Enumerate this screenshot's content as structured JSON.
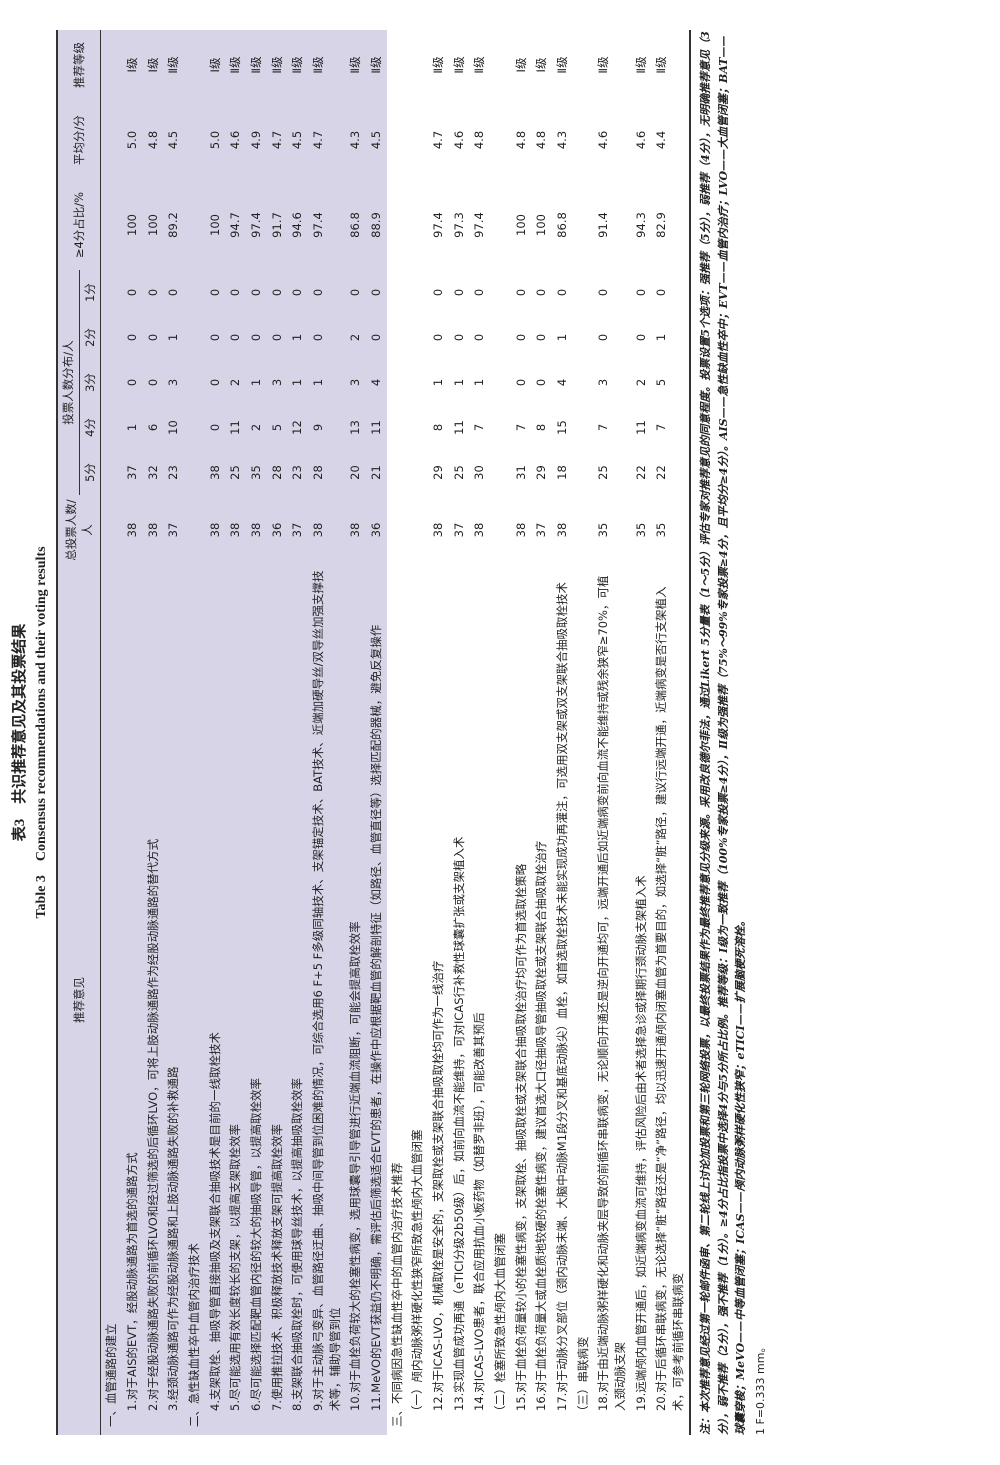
{
  "title": "表3　共识推荐意见及其投票结果",
  "title_en": "Table 3　Consensus recommendations and their voting results",
  "table": {
    "headers": [
      "推荐意见",
      "总投票人数/人",
      "投票人数分布/人",
      "≥4分占比/%",
      "平均分/分",
      "推荐等级"
    ],
    "subheaders": [
      "5分",
      "4分",
      "3分",
      "2分",
      "1分"
    ],
    "rows": [
      {
        "section": "一、血管通路的建立"
      },
      {
        "text": "1.对于AIS的EVT，经股动脉通路为首选的通路方式",
        "cells": [
          "38",
          "37",
          "1",
          "0",
          "0",
          "0",
          "100",
          "5.0",
          "Ⅰ级"
        ]
      },
      {
        "text": "2.对于经股动脉通路失败的前循环LVO和经过筛选的后循环LVO，可将上肢动脉通路作为经股动脉通路的替代方式",
        "cells": [
          "38",
          "32",
          "6",
          "0",
          "0",
          "0",
          "100",
          "4.8",
          "Ⅰ级"
        ]
      },
      {
        "text": "3.经颈动脉通路可作为经股动脉通路和上肢动脉通路失败的补救通路",
        "cells": [
          "37",
          "23",
          "10",
          "3",
          "1",
          "0",
          "89.2",
          "4.5",
          "Ⅱ级"
        ]
      },
      {
        "section": "二、急性缺血性卒中血管内治疗技术"
      },
      {
        "text": "4.支架取栓、抽吸导管直接抽吸及支架联合抽吸技术是目前的一线取栓技术",
        "cells": [
          "38",
          "38",
          "0",
          "0",
          "0",
          "0",
          "100",
          "5.0",
          "Ⅰ级"
        ]
      },
      {
        "text": "5.尽可能选用有效长度较长的支架，以提高支架取栓效率",
        "cells": [
          "38",
          "25",
          "11",
          "2",
          "0",
          "0",
          "94.7",
          "4.6",
          "Ⅱ级"
        ]
      },
      {
        "text": "6.尽可能选择匹配靶血管内径的较大的抽吸导管，以提高取栓效率",
        "cells": [
          "38",
          "35",
          "2",
          "1",
          "0",
          "0",
          "97.4",
          "4.9",
          "Ⅱ级"
        ]
      },
      {
        "text": "7.使用推拉技术、积极释放技术释放支架可提高取栓效率",
        "cells": [
          "36",
          "28",
          "5",
          "3",
          "0",
          "0",
          "91.7",
          "4.7",
          "Ⅱ级"
        ]
      },
      {
        "text": "8.支架联合抽吸取栓时，可使用球导丝技术，以提高抽吸取栓效率",
        "cells": [
          "37",
          "23",
          "12",
          "1",
          "1",
          "0",
          "94.6",
          "4.5",
          "Ⅱ级"
        ]
      },
      {
        "text": "9.对于主动脉弓变异、血管路径迂曲、抽吸中间导管到位困难的情况，可综合选用6 F+5 F多级同轴技术、支架锚定技术、BAT技术、近端加硬导丝/双导丝加强支撑技术等，辅助导管到位",
        "cells": [
          "38",
          "28",
          "9",
          "1",
          "0",
          "0",
          "97.4",
          "4.7",
          "Ⅱ级"
        ]
      },
      {
        "text": "10.对于血栓负荷较大的栓塞性病变，选用球囊导引导管进行近端血流阻断，可能会提高取栓效率",
        "cells": [
          "38",
          "20",
          "13",
          "3",
          "2",
          "0",
          "86.8",
          "4.3",
          "Ⅱ级"
        ]
      },
      {
        "text": "11.MeVO的EVT获益仍不明确，需评估后筛选适合EVT的患者，在操作中应根据靶血管的解剖特征（如路径、血管直径等）选择匹配的器械，避免反复操作",
        "cells": [
          "36",
          "21",
          "11",
          "4",
          "0",
          "0",
          "88.9",
          "4.5",
          "Ⅱ级"
        ]
      },
      {
        "section": "三、不同病因急性缺血性卒中的血管内治疗技术推荐"
      },
      {
        "subsection": "（一）颅内动脉粥样硬化性狭窄所致急性颅内大血管闭塞"
      },
      {
        "text": "12.对于ICAS-LVO，机械取栓是安全的，支架取栓或支架联合抽吸取栓均可作为一线治疗",
        "cells": [
          "38",
          "29",
          "8",
          "1",
          "0",
          "0",
          "97.4",
          "4.7",
          "Ⅱ级"
        ]
      },
      {
        "text": "13.实现血管成功再通（eTICI分级2b50级）后，如前向血流不能维持，可对ICAS行补救性球囊扩张或支架植入术",
        "cells": [
          "37",
          "25",
          "11",
          "1",
          "0",
          "0",
          "97.3",
          "4.6",
          "Ⅱ级"
        ]
      },
      {
        "text": "14.对ICAS-LVO患者，联合应用抗血小板药物（如替罗非班），可能改善其预后",
        "cells": [
          "38",
          "30",
          "7",
          "1",
          "0",
          "0",
          "97.4",
          "4.8",
          "Ⅱ级"
        ]
      },
      {
        "subsection": "（二）栓塞所致急性颅内大血管闭塞"
      },
      {
        "text": "15.对于血栓负荷量较小的栓塞性病变，支架取栓、抽吸取栓或支架联合抽吸取栓治疗均可作为首选取栓策略",
        "cells": [
          "38",
          "31",
          "7",
          "0",
          "0",
          "0",
          "100",
          "4.8",
          "Ⅰ级"
        ]
      },
      {
        "text": "16.对于血栓负荷量大或血栓质地较硬的栓塞性病变，建议首选大口径抽吸导管抽吸取栓或支架联合抽吸取栓治疗",
        "cells": [
          "37",
          "29",
          "8",
          "0",
          "0",
          "0",
          "100",
          "4.8",
          "Ⅰ级"
        ]
      },
      {
        "text": "17.对于动脉分叉部位（颈内动脉末端、大脑中动脉M1段分叉和基底动脉尖）血栓，如首选取栓技术未能实现成功再灌注，可选用双支架或双支架联合抽吸取栓技术",
        "cells": [
          "38",
          "18",
          "15",
          "4",
          "1",
          "0",
          "86.8",
          "4.3",
          "Ⅱ级"
        ]
      },
      {
        "subsection": "（三）串联病变"
      },
      {
        "text": "18.对于由近端动脉粥样硬化和动脉夹层导致的前循环串联病变，无论顺向开通还是逆向开通均可，远端开通后如近端病变前向血流不能维持或残余狭窄≥70%，可植入颈动脉支架",
        "cells": [
          "35",
          "25",
          "7",
          "3",
          "0",
          "0",
          "91.4",
          "4.6",
          "Ⅱ级"
        ]
      },
      {
        "text": "19.远端颅内血管开通后，如近端病变血流可维持，评估风险后由术者选择急诊或择期行颈动脉支架植入术",
        "cells": [
          "35",
          "22",
          "11",
          "2",
          "0",
          "0",
          "94.3",
          "4.6",
          "Ⅱ级"
        ]
      },
      {
        "text": "20.对于后循环串联病变，无论选择“脏”路径还是“净”路径，均以迅速开通颅内闭塞血管为首要目的，如选择“脏”路径，建议行远端开通，近端病变是否行支架植入术，可参考前循环串联病变",
        "cells": [
          "35",
          "22",
          "7",
          "5",
          "1",
          "0",
          "82.9",
          "4.4",
          "Ⅱ级"
        ]
      }
    ]
  },
  "note": "注：本次推荐意见经过第一轮邮件函审、第二轮线上讨论加投票和第三轮网络投票，以最终投票结果作为最终推荐意见分级来源。采用改良德尔菲法，通过Likert 5分量表（1～5分）评估专家对推荐意见的同意程度。投票设置5个选项：强推荐（5分），弱推荐（4分），无明确推荐意见（3分），弱不推荐（2分），强不推荐（1分）。≥4分占比指投票中选择4分与5分所占比例。推荐等级：Ⅰ级为一致推荐（100%专家投票≥4分），Ⅱ级为强推荐（75%～99%专家投票≥4分，且平均分≥4分）。AIS——急性缺血性卒中；EVT——血管内治疗；LVO——大血管闭塞；BAT——球囊穿梭；MeVO——中等血管闭塞；ICAS——颅内动脉粥样硬化性狭窄；eTICI——扩展脑梗死溶栓。",
  "footnote": "1 F=0.333 mm。"
}
